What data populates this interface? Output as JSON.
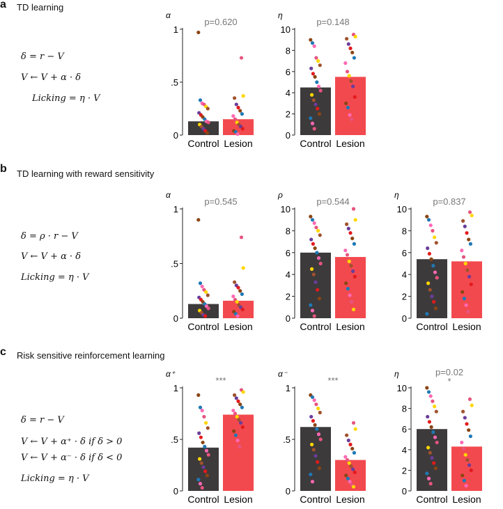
{
  "colors": {
    "control_bar": "#3d3a3b",
    "lesion_bar": "#f2494f",
    "axis": "#222222",
    "pvalue": "#777777",
    "dots": [
      "#8b4513",
      "#e75480",
      "#6a3d9a",
      "#1f78b4",
      "#ffd700",
      "#e31a1c",
      "#ff69b4",
      "#a0522d"
    ]
  },
  "panels": [
    {
      "letter": "a",
      "title": "TD learning",
      "equations": [
        "δ = r − V",
        "V ← V + α · δ",
        "Licking = η · V"
      ]
    },
    {
      "letter": "b",
      "title": "TD learning with reward sensitivity",
      "equations": [
        "δ = ρ · r − V",
        "V ← V + α · δ",
        "Licking = η · V"
      ]
    },
    {
      "letter": "c",
      "title": "Risk sensitive reinforcement learning",
      "equations": [
        "δ = r − V",
        "V ← V + α⁺ · δ    if  δ > 0",
        "V ← V + α⁻ · δ    if  δ < 0",
        "Licking = η · V"
      ]
    }
  ],
  "chart_data": [
    {
      "type": "bar",
      "panel": "a",
      "param": "α",
      "pvalue": "p=0.620",
      "categories": [
        "Control",
        "Lesion"
      ],
      "values": [
        0.13,
        0.15
      ],
      "yticks": [
        "0",
        ".5",
        "1"
      ],
      "ytick_values": [
        0,
        0.5,
        1
      ],
      "ylim": [
        0,
        1
      ],
      "points": {
        "Control": [
          0.97,
          0.33,
          0.3,
          0.29,
          0.27,
          0.25,
          0.21,
          0.19,
          0.17,
          0.15,
          0.13,
          0.12,
          0.1,
          0.08,
          0.06,
          0.04,
          0.02
        ],
        "Lesion": [
          0.73,
          0.37,
          0.35,
          0.29,
          0.26,
          0.23,
          0.2,
          0.18,
          0.15,
          0.12,
          0.1,
          0.08,
          0.06,
          0.04,
          0.03,
          0.01
        ]
      }
    },
    {
      "type": "bar",
      "panel": "a",
      "param": "η",
      "pvalue": "p=0.148",
      "categories": [
        "Control",
        "Lesion"
      ],
      "values": [
        4.5,
        5.5
      ],
      "yticks": [
        "0",
        "2",
        "4",
        "6",
        "8",
        "10"
      ],
      "ytick_values": [
        0,
        2,
        4,
        6,
        8,
        10
      ],
      "ylim": [
        0,
        10
      ],
      "points": {
        "Control": [
          9.0,
          8.7,
          8.4,
          7.3,
          7.0,
          6.6,
          6.3,
          5.8,
          5.5,
          5.0,
          4.6,
          4.2,
          3.8,
          3.3,
          2.9,
          2.5,
          2.0,
          1.6,
          1.1,
          0.6
        ],
        "Lesion": [
          9.5,
          9.3,
          9.1,
          8.6,
          8.2,
          7.8,
          7.3,
          6.8,
          6.0,
          5.6,
          5.1,
          4.6,
          3.6,
          3.0,
          2.6,
          1.9,
          1.5
        ]
      }
    },
    {
      "type": "bar",
      "panel": "b",
      "param": "α",
      "pvalue": "p=0.545",
      "categories": [
        "Control",
        "Lesion"
      ],
      "values": [
        0.13,
        0.16
      ],
      "yticks": [
        "0",
        ".5",
        "1"
      ],
      "ytick_values": [
        0,
        0.5,
        1
      ],
      "ylim": [
        0,
        1
      ],
      "points": {
        "Control": [
          0.9,
          0.32,
          0.29,
          0.26,
          0.24,
          0.21,
          0.19,
          0.17,
          0.15,
          0.13,
          0.11,
          0.09,
          0.07,
          0.05,
          0.03,
          0.02
        ],
        "Lesion": [
          0.74,
          0.46,
          0.33,
          0.3,
          0.28,
          0.25,
          0.22,
          0.2,
          0.17,
          0.15,
          0.12,
          0.1,
          0.08,
          0.06,
          0.04,
          0.02
        ]
      }
    },
    {
      "type": "bar",
      "panel": "b",
      "param": "ρ",
      "pvalue": "p=0.544",
      "categories": [
        "Control",
        "Lesion"
      ],
      "values": [
        6.0,
        5.6
      ],
      "yticks": [
        "0",
        "2",
        "4",
        "6",
        "8",
        "10"
      ],
      "ytick_values": [
        0,
        2,
        4,
        6,
        8,
        10
      ],
      "ylim": [
        0,
        10
      ],
      "points": {
        "Control": [
          9.3,
          9.0,
          8.7,
          8.3,
          8.0,
          7.6,
          7.2,
          6.8,
          6.4,
          6.0,
          5.5,
          5.0,
          4.5,
          4.0,
          3.3,
          2.6,
          1.8,
          1.2,
          0.7,
          0.2
        ],
        "Lesion": [
          10.0,
          9.0,
          8.6,
          8.2,
          7.8,
          7.3,
          6.8,
          6.2,
          5.8,
          5.2,
          4.8,
          4.3,
          3.8,
          3.2,
          2.7,
          2.1,
          1.5,
          0.8
        ]
      }
    },
    {
      "type": "bar",
      "panel": "b",
      "param": "η",
      "pvalue": "p=0.837",
      "categories": [
        "Control",
        "Lesion"
      ],
      "values": [
        5.4,
        5.2
      ],
      "yticks": [
        "0",
        "2",
        "4",
        "6",
        "8",
        "10"
      ],
      "ytick_values": [
        0,
        2,
        4,
        6,
        8,
        10
      ],
      "ylim": [
        0,
        10
      ],
      "points": {
        "Control": [
          9.3,
          9.0,
          8.5,
          8.0,
          7.4,
          6.9,
          6.4,
          5.9,
          5.4,
          4.8,
          4.2,
          3.7,
          3.2,
          2.6,
          2.0,
          1.5,
          0.9,
          0.4
        ],
        "Lesion": [
          9.7,
          9.4,
          8.9,
          8.4,
          7.8,
          7.2,
          6.8,
          6.2,
          5.6,
          5.0,
          4.4,
          3.8,
          3.1,
          2.4,
          1.8,
          1.2,
          0.6
        ]
      }
    },
    {
      "type": "bar",
      "panel": "c",
      "param": "α⁺",
      "pvalue": "***",
      "categories": [
        "Control",
        "Lesion"
      ],
      "values": [
        0.42,
        0.74
      ],
      "yticks": [
        "0",
        ".5",
        "1"
      ],
      "ytick_values": [
        0,
        0.5,
        1
      ],
      "ylim": [
        0,
        1
      ],
      "points": {
        "Control": [
          0.93,
          0.81,
          0.78,
          0.72,
          0.66,
          0.61,
          0.56,
          0.52,
          0.47,
          0.43,
          0.39,
          0.35,
          0.31,
          0.27,
          0.23,
          0.19,
          0.15,
          0.11,
          0.07,
          0.03
        ],
        "Lesion": [
          0.98,
          0.96,
          0.93,
          0.9,
          0.87,
          0.84,
          0.81,
          0.78,
          0.75,
          0.72,
          0.69,
          0.66,
          0.62,
          0.58,
          0.54,
          0.49,
          0.43
        ]
      }
    },
    {
      "type": "bar",
      "panel": "c",
      "param": "α⁻",
      "pvalue": "***",
      "categories": [
        "Control",
        "Lesion"
      ],
      "values": [
        0.62,
        0.3
      ],
      "yticks": [
        "0",
        ".5",
        "1"
      ],
      "ytick_values": [
        0,
        0.5,
        1
      ],
      "ylim": [
        0,
        1
      ],
      "points": {
        "Control": [
          0.93,
          0.91,
          0.88,
          0.84,
          0.8,
          0.76,
          0.72,
          0.68,
          0.64,
          0.6,
          0.55,
          0.5,
          0.45,
          0.4,
          0.34,
          0.28,
          0.22,
          0.16,
          0.09
        ],
        "Lesion": [
          0.66,
          0.6,
          0.54,
          0.49,
          0.45,
          0.41,
          0.37,
          0.33,
          0.3,
          0.27,
          0.24,
          0.21,
          0.18,
          0.15,
          0.12,
          0.09,
          0.06,
          0.04
        ]
      }
    },
    {
      "type": "bar",
      "panel": "c",
      "param": "η",
      "pvalue": "p=0.02",
      "significance": "*",
      "categories": [
        "Control",
        "Lesion"
      ],
      "values": [
        6.0,
        4.3
      ],
      "yticks": [
        "0",
        "2",
        "4",
        "6",
        "8",
        "10"
      ],
      "ytick_values": [
        0,
        2,
        4,
        6,
        8,
        10
      ],
      "ylim": [
        0,
        10
      ],
      "points": {
        "Control": [
          10.0,
          9.6,
          9.2,
          8.7,
          8.2,
          7.7,
          7.2,
          6.7,
          6.2,
          5.7,
          5.2,
          4.7,
          4.2,
          3.7,
          3.2,
          2.7,
          2.2,
          1.7,
          1.2,
          0.7
        ],
        "Lesion": [
          8.9,
          8.3,
          7.7,
          7.1,
          6.5,
          5.9,
          5.3,
          4.7,
          4.1,
          3.5,
          3.0,
          2.5,
          2.0,
          1.5,
          1.0,
          0.5
        ]
      }
    }
  ]
}
